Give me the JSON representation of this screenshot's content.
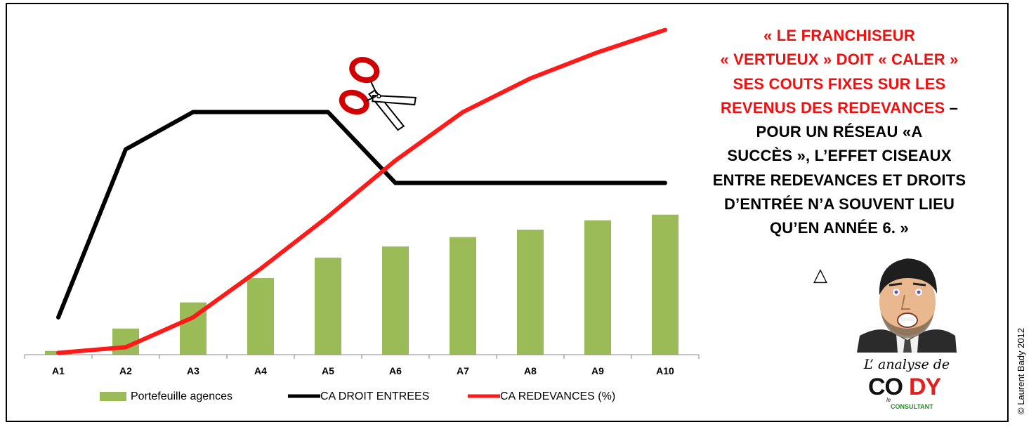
{
  "quote": {
    "red_lines": [
      "« LE FRANCHISEUR",
      "« VERTUEUX » DOIT « CALER »",
      "SES COUTS FIXES SUR LES",
      "REVENUS DES REDEVANCES"
    ],
    "dash": " –",
    "black_lines": [
      "POUR UN RÉSEAU «A",
      "SUCCÈS »,  L’EFFET CISEAUX",
      "ENTRE REDEVANCES ET DROITS",
      "D’ENTRÉE N’A  SOUVENT LIEU",
      "QU’EN ANNÉE 6. »"
    ]
  },
  "triangle_symbol": "△",
  "signature": {
    "tagline": "L’ analyse de",
    "logo_co": "CO",
    "logo_dy": "DY",
    "logo_le": "le",
    "logo_consultant": "CONSULTANT"
  },
  "copyright": "© Laurent Bady 2012",
  "colors": {
    "bars": "#9bbb59",
    "droit": "#000000",
    "redevances": "#ff1a1a",
    "quote_red": "#ee1111"
  },
  "chart_data": {
    "type": "bar",
    "title": "",
    "categories": [
      "A1",
      "A2",
      "A3",
      "A4",
      "A5",
      "A6",
      "A7",
      "A8",
      "A9",
      "A10"
    ],
    "series": [
      {
        "name": "Portefeuille agences",
        "kind": "bar",
        "values": [
          1,
          7,
          14,
          20.5,
          26,
          29,
          31.5,
          33.5,
          36,
          37.5
        ]
      },
      {
        "name": "CA DROIT ENTREES",
        "kind": "line",
        "values": [
          10,
          55,
          65,
          65,
          65,
          46,
          46,
          46,
          46,
          46
        ]
      },
      {
        "name": "CA REDEVANCES (%)",
        "kind": "line",
        "values": [
          0.5,
          2,
          10,
          23,
          37,
          52,
          65,
          74,
          81,
          87
        ]
      }
    ],
    "xlabel": "",
    "ylabel": "",
    "ylim": [
      0,
      92
    ],
    "grid": false,
    "legend": "bottom"
  }
}
